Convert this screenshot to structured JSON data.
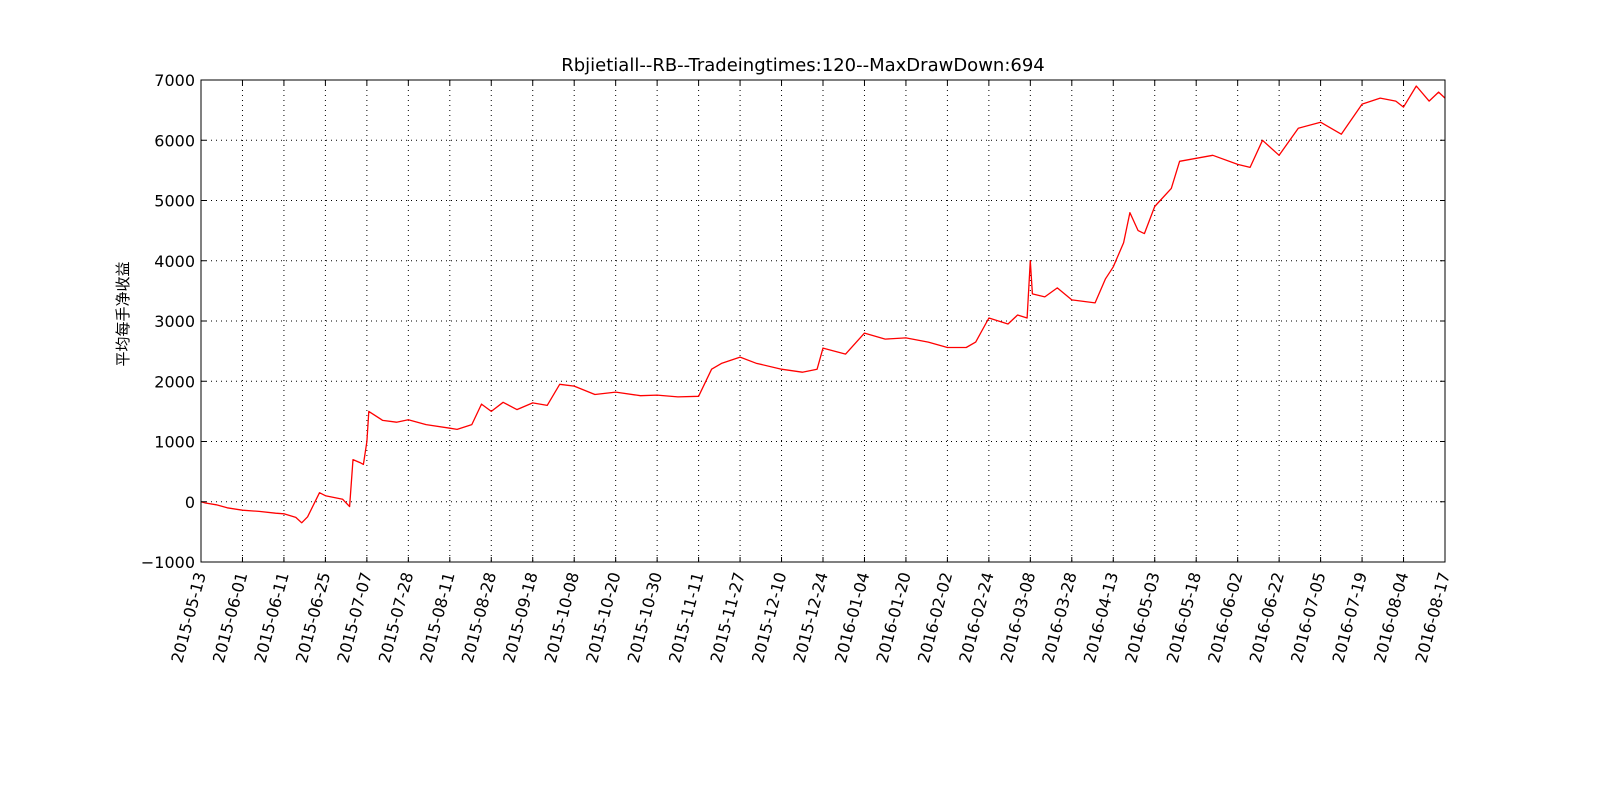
{
  "chart_data": {
    "type": "line",
    "title": "Rbjietiall--RB--Tradeingtimes:120--MaxDrawDown:694",
    "xlabel": "",
    "ylabel": "平均每手净收益",
    "ylim": [
      -1000,
      7000
    ],
    "y_ticks": [
      "−1000",
      "0",
      "1000",
      "2000",
      "3000",
      "4000",
      "5000",
      "6000",
      "7000"
    ],
    "x_ticks": [
      "2015-05-13",
      "2015-06-01",
      "2015-06-11",
      "2015-06-25",
      "2015-07-07",
      "2015-07-28",
      "2015-08-11",
      "2015-08-28",
      "2015-09-18",
      "2015-10-08",
      "2015-10-20",
      "2015-10-30",
      "2015-11-11",
      "2015-11-27",
      "2015-12-10",
      "2015-12-24",
      "2016-01-04",
      "2016-01-20",
      "2016-02-02",
      "2016-02-24",
      "2016-03-08",
      "2016-03-28",
      "2016-04-13",
      "2016-05-03",
      "2016-05-18",
      "2016-06-02",
      "2016-06-22",
      "2016-07-05",
      "2016-07-19",
      "2016-08-04",
      "2016-08-17"
    ],
    "grid": true,
    "x_axis_type": "trading-day",
    "series": [
      {
        "color": "#ff0000",
        "points": [
          [
            "2015-05-13",
            0
          ],
          [
            "2015-05-15",
            -20
          ],
          [
            "2015-05-20",
            -50
          ],
          [
            "2015-05-25",
            -100
          ],
          [
            "2015-06-01",
            -140
          ],
          [
            "2015-06-05",
            -160
          ],
          [
            "2015-06-09",
            -190
          ],
          [
            "2015-06-11",
            -200
          ],
          [
            "2015-06-15",
            -260
          ],
          [
            "2015-06-17",
            -350
          ],
          [
            "2015-06-19",
            -250
          ],
          [
            "2015-06-23",
            150
          ],
          [
            "2015-06-25",
            100
          ],
          [
            "2015-06-30",
            40
          ],
          [
            "2015-07-02",
            -80
          ],
          [
            "2015-07-03",
            700
          ],
          [
            "2015-07-05",
            650
          ],
          [
            "2015-07-06",
            620
          ],
          [
            "2015-07-07",
            1000
          ],
          [
            "2015-07-08",
            1500
          ],
          [
            "2015-07-15",
            1350
          ],
          [
            "2015-07-22",
            1320
          ],
          [
            "2015-07-28",
            1360
          ],
          [
            "2015-08-03",
            1280
          ],
          [
            "2015-08-11",
            1220
          ],
          [
            "2015-08-14",
            1200
          ],
          [
            "2015-08-20",
            1280
          ],
          [
            "2015-08-24",
            1620
          ],
          [
            "2015-08-28",
            1500
          ],
          [
            "2015-09-03",
            1650
          ],
          [
            "2015-09-10",
            1530
          ],
          [
            "2015-09-18",
            1640
          ],
          [
            "2015-09-25",
            1600
          ],
          [
            "2015-10-01",
            1950
          ],
          [
            "2015-10-08",
            1920
          ],
          [
            "2015-10-14",
            1780
          ],
          [
            "2015-10-20",
            1820
          ],
          [
            "2015-10-26",
            1760
          ],
          [
            "2015-10-30",
            1770
          ],
          [
            "2015-11-05",
            1740
          ],
          [
            "2015-11-11",
            1750
          ],
          [
            "2015-11-16",
            2200
          ],
          [
            "2015-11-20",
            2300
          ],
          [
            "2015-11-27",
            2400
          ],
          [
            "2015-12-02",
            2300
          ],
          [
            "2015-12-10",
            2200
          ],
          [
            "2015-12-17",
            2150
          ],
          [
            "2015-12-22",
            2200
          ],
          [
            "2015-12-24",
            2550
          ],
          [
            "2015-12-30",
            2450
          ],
          [
            "2016-01-04",
            2800
          ],
          [
            "2016-01-12",
            2700
          ],
          [
            "2016-01-20",
            2720
          ],
          [
            "2016-01-27",
            2650
          ],
          [
            "2016-02-02",
            2560
          ],
          [
            "2016-02-12",
            2560
          ],
          [
            "2016-02-17",
            2650
          ],
          [
            "2016-02-24",
            3050
          ],
          [
            "2016-03-01",
            2950
          ],
          [
            "2016-03-04",
            3100
          ],
          [
            "2016-03-07",
            3050
          ],
          [
            "2016-03-08",
            4000
          ],
          [
            "2016-03-09",
            3450
          ],
          [
            "2016-03-15",
            3400
          ],
          [
            "2016-03-21",
            3550
          ],
          [
            "2016-03-28",
            3350
          ],
          [
            "2016-04-06",
            3300
          ],
          [
            "2016-04-10",
            3700
          ],
          [
            "2016-04-13",
            3900
          ],
          [
            "2016-04-18",
            4300
          ],
          [
            "2016-04-21",
            4800
          ],
          [
            "2016-04-25",
            4500
          ],
          [
            "2016-04-28",
            4450
          ],
          [
            "2016-05-03",
            4900
          ],
          [
            "2016-05-09",
            5200
          ],
          [
            "2016-05-12",
            5650
          ],
          [
            "2016-05-18",
            5700
          ],
          [
            "2016-05-24",
            5750
          ],
          [
            "2016-06-02",
            5600
          ],
          [
            "2016-06-08",
            5550
          ],
          [
            "2016-06-14",
            6000
          ],
          [
            "2016-06-22",
            5750
          ],
          [
            "2016-06-28",
            6200
          ],
          [
            "2016-07-05",
            6300
          ],
          [
            "2016-07-12",
            6100
          ],
          [
            "2016-07-19",
            6600
          ],
          [
            "2016-07-26",
            6700
          ],
          [
            "2016-08-01",
            6650
          ],
          [
            "2016-08-04",
            6550
          ],
          [
            "2016-08-08",
            6900
          ],
          [
            "2016-08-12",
            6650
          ],
          [
            "2016-08-15",
            6800
          ],
          [
            "2016-08-17",
            6700
          ]
        ]
      }
    ]
  }
}
